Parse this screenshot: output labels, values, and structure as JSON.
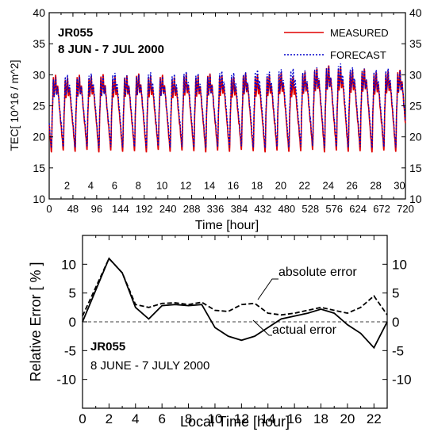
{
  "colors": {
    "measured": "#e00000",
    "forecast": "#0000cc",
    "axis": "#000000"
  },
  "chart_data": [
    {
      "type": "line",
      "annotation_lines": [
        "JR055",
        "8 JUN - 7 JUL 2000"
      ],
      "xlabel": "Time [hour]",
      "ylabel": "TEC[ 10^16 / m^2]",
      "xlim": [
        0,
        720
      ],
      "ylim": [
        10,
        40
      ],
      "xticks": [
        0,
        48,
        96,
        144,
        192,
        240,
        288,
        336,
        384,
        432,
        480,
        528,
        576,
        624,
        672,
        720
      ],
      "yticks": [
        10,
        15,
        20,
        25,
        30,
        35,
        40
      ],
      "day_labels": [
        "2",
        "4",
        "6",
        "8",
        "10",
        "12",
        "14",
        "16",
        "18",
        "20",
        "22",
        "24",
        "26",
        "28",
        "30"
      ],
      "day_label_x": [
        36,
        84,
        132,
        180,
        228,
        276,
        324,
        372,
        420,
        468,
        516,
        564,
        612,
        660,
        708
      ],
      "grid": false,
      "legend_position": "top-right",
      "daily_minimum_hour": 4.5,
      "daily_peak_hour": 13,
      "series": [
        {
          "name": "MEASURED",
          "style": "solid",
          "daily_min": [
            17.5,
            17.8,
            17.6,
            17.9,
            17.5,
            17.8,
            17.6,
            17.7,
            17.5,
            17.9,
            17.6,
            17.8,
            17.7,
            17.5,
            17.8,
            17.6,
            17.9,
            17.7,
            17.5,
            17.8,
            17.6,
            17.7,
            17.9,
            17.5,
            17.8,
            17.6,
            17.7,
            17.5,
            17.8,
            17.6
          ],
          "daily_max": [
            30.0,
            29.5,
            30.0,
            29.8,
            30.1,
            29.7,
            29.9,
            30.2,
            29.8,
            30.0,
            29.6,
            30.1,
            29.9,
            30.2,
            30.0,
            29.7,
            30.3,
            29.9,
            30.1,
            30.4,
            29.8,
            30.5,
            31.0,
            31.5,
            31.2,
            30.8,
            31.0,
            30.4,
            30.6,
            30.8
          ]
        },
        {
          "name": "FORECAST",
          "style": "dotted",
          "daily_min": [
            18.2,
            18.4,
            18.3,
            18.5,
            18.2,
            18.4,
            18.3,
            18.4,
            18.2,
            18.5,
            18.3,
            18.4,
            18.3,
            18.2,
            18.4,
            18.3,
            18.5,
            18.3,
            18.2,
            18.4,
            18.3,
            18.4,
            18.5,
            18.2,
            18.4,
            18.3,
            18.4,
            18.2,
            18.4,
            18.3
          ],
          "daily_max": [
            29.6,
            30.0,
            29.7,
            30.2,
            29.8,
            30.3,
            29.9,
            30.0,
            30.4,
            29.7,
            30.1,
            30.5,
            30.2,
            30.0,
            30.6,
            30.3,
            30.4,
            30.8,
            30.5,
            30.9,
            31.0,
            30.7,
            31.2,
            31.4,
            31.8,
            31.2,
            31.0,
            30.8,
            31.0,
            30.6
          ]
        }
      ]
    },
    {
      "type": "line",
      "annotation_lines": [
        "JR055",
        "8 JUNE - 7 JULY 2000"
      ],
      "xlabel": "Local Time [hour]",
      "ylabel": "Relative Error [ % ]",
      "xlim": [
        0,
        23
      ],
      "ylim": [
        -15,
        15
      ],
      "xticks": [
        0,
        2,
        4,
        6,
        8,
        10,
        12,
        14,
        16,
        18,
        20,
        22
      ],
      "yticks": [
        -10,
        -5,
        0,
        5,
        10
      ],
      "zero_line": "dashed",
      "grid": false,
      "series": [
        {
          "label": "absolute error",
          "style": "dashed",
          "x": [
            0,
            1,
            2,
            3,
            4,
            5,
            6,
            7,
            8,
            9,
            10,
            11,
            12,
            13,
            14,
            15,
            16,
            17,
            18,
            19,
            20,
            21,
            22,
            23
          ],
          "y": [
            1.0,
            6.0,
            11.0,
            8.5,
            3.0,
            2.5,
            3.2,
            3.3,
            3.0,
            3.4,
            2.0,
            1.8,
            3.0,
            3.2,
            1.5,
            1.2,
            1.5,
            2.0,
            2.5,
            2.0,
            1.5,
            2.5,
            4.5,
            1.2
          ]
        },
        {
          "label": "actual error",
          "style": "solid",
          "x": [
            0,
            1,
            2,
            3,
            4,
            5,
            6,
            7,
            8,
            9,
            10,
            11,
            12,
            13,
            14,
            15,
            16,
            17,
            18,
            19,
            20,
            21,
            22,
            23
          ],
          "y": [
            0.0,
            5.5,
            11.0,
            8.5,
            2.5,
            0.5,
            2.8,
            3.0,
            2.8,
            3.0,
            -1.0,
            -2.5,
            -3.2,
            -2.5,
            -1.0,
            0.5,
            1.0,
            1.5,
            2.2,
            1.5,
            -0.5,
            -2.0,
            -4.5,
            0.0
          ]
        }
      ]
    }
  ]
}
